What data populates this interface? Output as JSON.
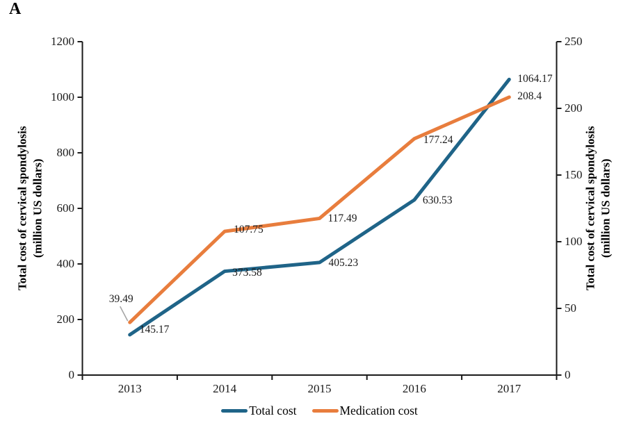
{
  "panel_label": "A",
  "chart_data": {
    "type": "line",
    "title": "",
    "categories": [
      "2013",
      "2014",
      "2015",
      "2016",
      "2017"
    ],
    "series": [
      {
        "name": "Total cost",
        "axis": "left",
        "color": "#1f6488",
        "values": [
          145.17,
          373.58,
          405.23,
          630.53,
          1064.17
        ],
        "point_labels": [
          "145.17",
          "373.58",
          "405.23",
          "630.53",
          "1064.17"
        ]
      },
      {
        "name": "Medication cost",
        "axis": "right",
        "color": "#e87d3d",
        "values": [
          39.49,
          107.75,
          117.49,
          177.24,
          208.4
        ],
        "point_labels": [
          "39.49",
          "107.75",
          "117.49",
          "177.24",
          "208.4"
        ]
      }
    ],
    "y_left": {
      "title": "Total cost of cervical spondylosis\n(million  US dollars)",
      "min": 0,
      "max": 1200,
      "step": 200,
      "ticks": [
        "0",
        "200",
        "400",
        "600",
        "800",
        "1000",
        "1200"
      ]
    },
    "y_right": {
      "title": "Total cost of cervical spondylosis\n(million  US dollars)",
      "min": 0,
      "max": 250,
      "step": 50,
      "ticks": [
        "0",
        "50",
        "100",
        "150",
        "200",
        "250"
      ]
    },
    "grid": false,
    "legend_position": "bottom",
    "legend": [
      {
        "label": "Total cost",
        "color": "#1f6488"
      },
      {
        "label": "Medication cost",
        "color": "#e87d3d"
      }
    ],
    "annotation_colors": {
      "leader_line": "#a6a6a6",
      "axis_line": "#1a1a1a"
    }
  }
}
